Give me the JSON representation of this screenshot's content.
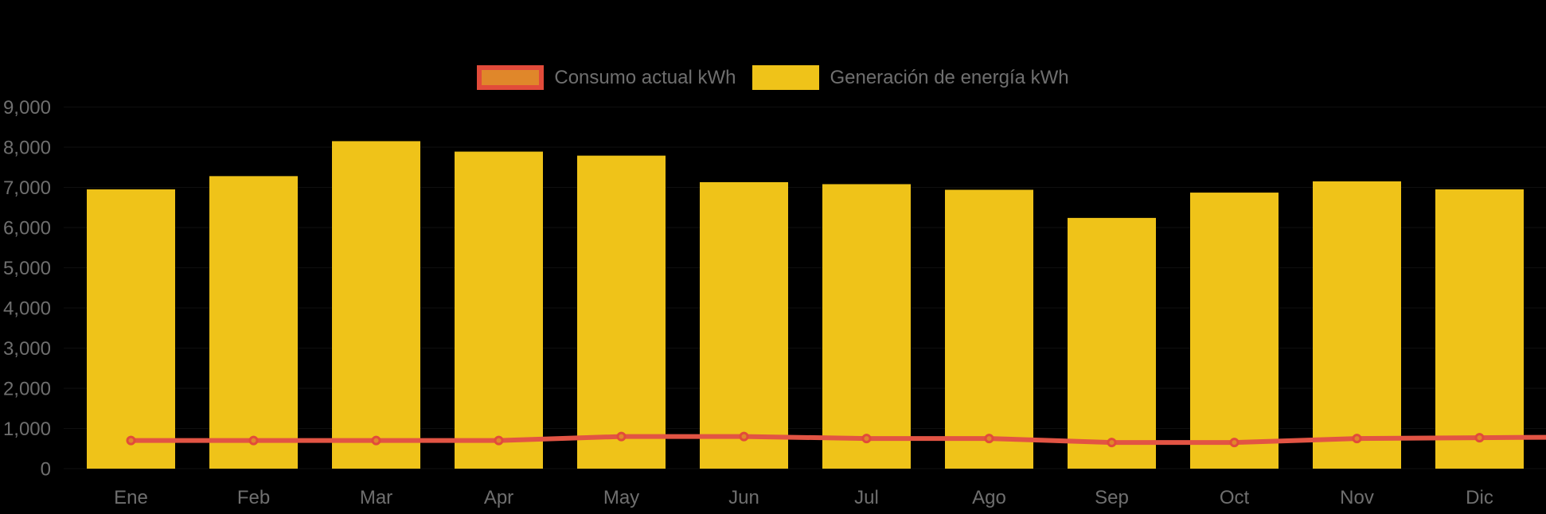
{
  "background_color": "#000000",
  "axis_text_color": "#6F6F6F",
  "legend": {
    "items": [
      {
        "id": "consumo",
        "label": "Consumo actual kWh",
        "swatch_fill": "#E0872A",
        "swatch_border": "#E24B3A"
      },
      {
        "id": "generacion",
        "label": "Generación de energía kWh",
        "swatch_fill": "#EFC319",
        "swatch_border": "#EFC319"
      }
    ]
  },
  "chart_data": {
    "type": "bar",
    "title": "",
    "xlabel": "",
    "ylabel": "",
    "categories": [
      "Ene",
      "Feb",
      "Mar",
      "Apr",
      "May",
      "Jun",
      "Jul",
      "Ago",
      "Sep",
      "Oct",
      "Nov",
      "Dic"
    ],
    "series": [
      {
        "name": "Generación de energía kWh",
        "type": "bar",
        "color": "#EFC319",
        "values": [
          6950,
          7280,
          8150,
          7890,
          7790,
          7130,
          7080,
          6940,
          6240,
          6870,
          7150,
          6950
        ]
      },
      {
        "name": "Consumo actual kWh",
        "type": "line",
        "color": "#E25444",
        "marker_fill": "#E0872A",
        "marker_stroke": "#E24B3A",
        "values": [
          700,
          700,
          700,
          700,
          800,
          800,
          750,
          750,
          650,
          650,
          750,
          770
        ]
      }
    ],
    "ylim": [
      0,
      9000
    ],
    "ytick_step": 1000,
    "ytick_labels": [
      "0",
      "1,000",
      "2,000",
      "3,000",
      "4,000",
      "5,000",
      "6,000",
      "7,000",
      "8,000",
      "9,000"
    ],
    "grid": false,
    "legend_position": "top-center"
  }
}
